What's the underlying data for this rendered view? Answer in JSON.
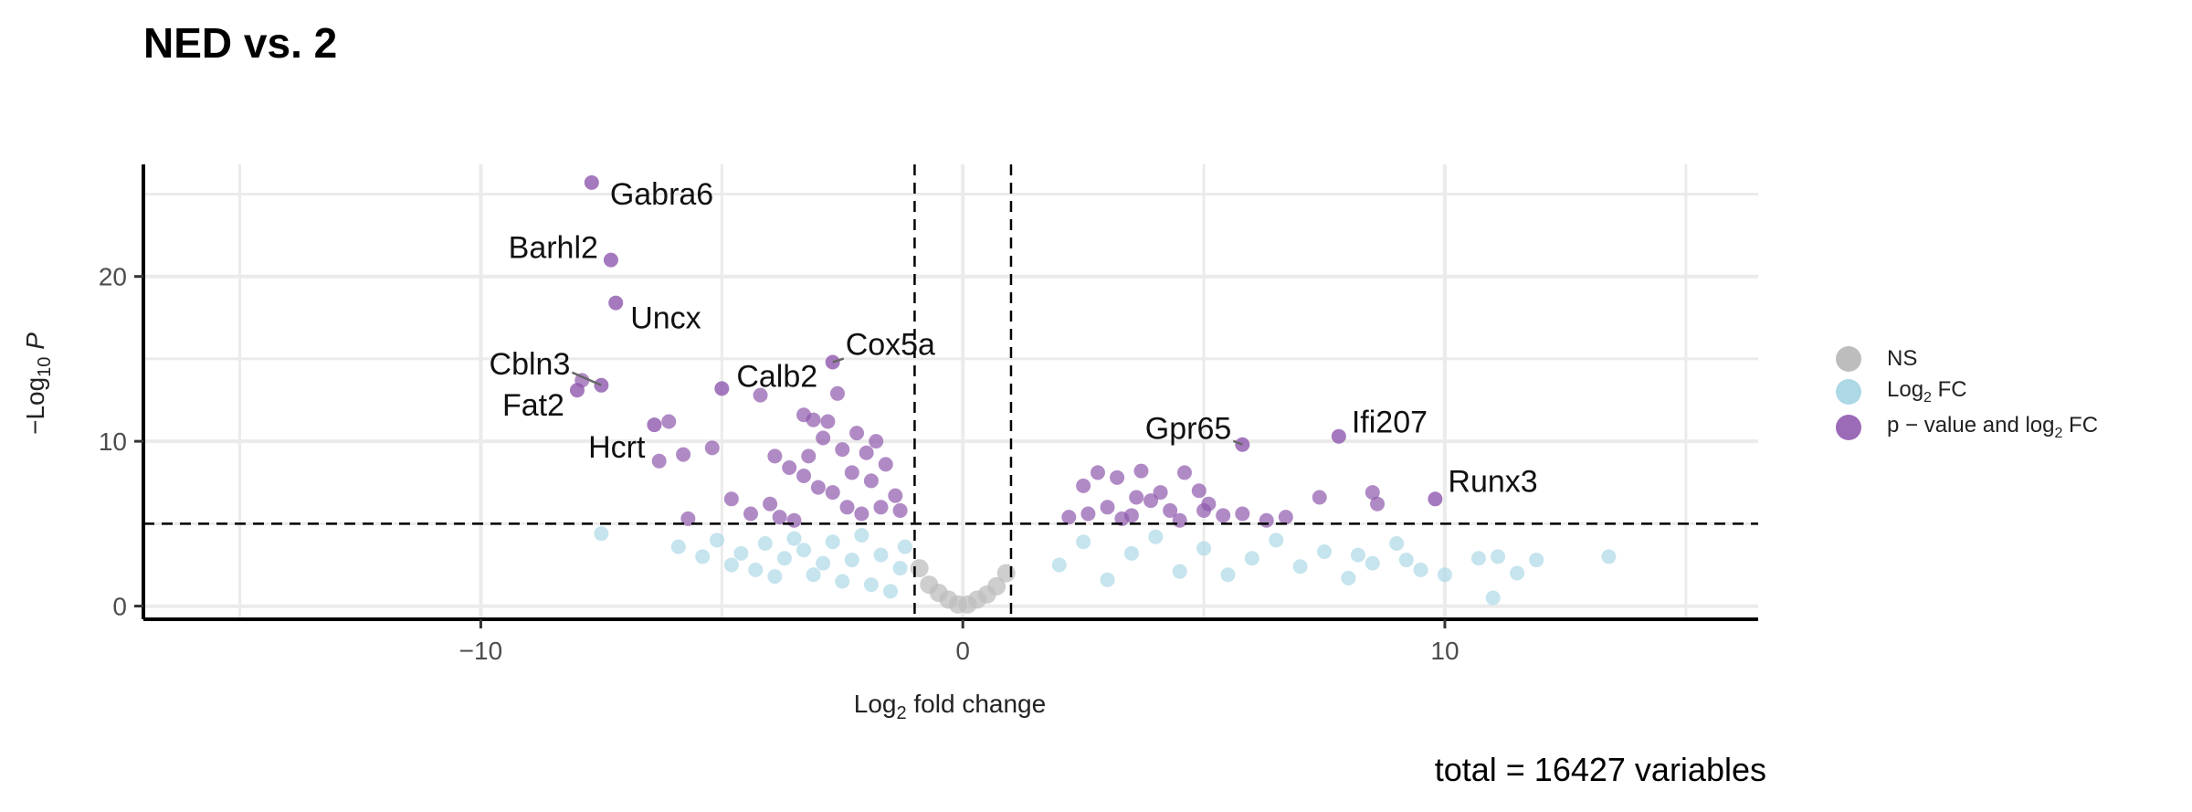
{
  "chart_data": {
    "type": "scatter",
    "title": "NED vs. 2",
    "xlabel_parts": [
      "Log",
      "2",
      " fold change"
    ],
    "ylabel_parts": [
      "−Log",
      "10",
      " P"
    ],
    "xlim": [
      -17,
      16.5
    ],
    "ylim": [
      -0.8,
      26.8
    ],
    "x_ticks": [
      {
        "value": -10,
        "label": "−10"
      },
      {
        "value": 0,
        "label": "0"
      },
      {
        "value": 10,
        "label": "10"
      }
    ],
    "y_ticks": [
      {
        "value": 0,
        "label": "0"
      },
      {
        "value": 10,
        "label": "10"
      },
      {
        "value": 20,
        "label": "20"
      }
    ],
    "cutoffs": {
      "log2fc": [
        -1,
        1
      ],
      "neg_log10_p": 5
    },
    "grid": true,
    "caption": "total = 16427 variables",
    "legend": {
      "position": "right",
      "items": [
        {
          "label_parts": [
            "NS"
          ],
          "color": "#bdbdbd"
        },
        {
          "label_parts": [
            "Log",
            "2",
            " FC"
          ],
          "color": "#add8e6"
        },
        {
          "label_parts": [
            "p − value and log",
            "2",
            " FC"
          ],
          "color": "#9b6bb7"
        }
      ]
    },
    "series_colors": {
      "ns": "#bdbdbd",
      "fc": "#add8e6",
      "both": "#8e58ac"
    },
    "labeled_genes": [
      {
        "name": "Gabra6",
        "x": -7.7,
        "y": 25.7
      },
      {
        "name": "Barhl2",
        "x": -7.3,
        "y": 21.0
      },
      {
        "name": "Uncx",
        "x": -7.2,
        "y": 18.4
      },
      {
        "name": "Cbln3",
        "x": -7.5,
        "y": 13.4
      },
      {
        "name": "Calb2",
        "x": -5.0,
        "y": 13.2
      },
      {
        "name": "Fat2",
        "x": -8.0,
        "y": 13.1
      },
      {
        "name": "Hcrt",
        "x": -6.4,
        "y": 11.0
      },
      {
        "name": "Cox5a",
        "x": -2.7,
        "y": 14.8
      },
      {
        "name": "Gpr65",
        "x": 5.8,
        "y": 9.8
      },
      {
        "name": "Ifi207",
        "x": 7.8,
        "y": 10.3
      },
      {
        "name": "Runx3",
        "x": 9.8,
        "y": 6.5
      }
    ],
    "significant_points": [
      [
        -7.9,
        13.7
      ],
      [
        -6.1,
        11.2
      ],
      [
        -5.8,
        9.2
      ],
      [
        -6.3,
        8.8
      ],
      [
        -5.2,
        9.6
      ],
      [
        -4.8,
        6.5
      ],
      [
        -4.4,
        5.6
      ],
      [
        -5.7,
        5.3
      ],
      [
        -4.2,
        12.8
      ],
      [
        -4.0,
        6.2
      ],
      [
        -3.8,
        5.4
      ],
      [
        -3.6,
        8.4
      ],
      [
        -3.5,
        5.2
      ],
      [
        -3.3,
        11.6
      ],
      [
        -3.1,
        11.3
      ],
      [
        -3.2,
        9.1
      ],
      [
        -3.0,
        7.2
      ],
      [
        -2.9,
        10.2
      ],
      [
        -2.8,
        11.2
      ],
      [
        -2.6,
        12.9
      ],
      [
        -2.5,
        9.5
      ],
      [
        -2.3,
        8.1
      ],
      [
        -2.2,
        10.5
      ],
      [
        -2.0,
        9.3
      ],
      [
        -1.9,
        7.6
      ],
      [
        -1.8,
        10.0
      ],
      [
        -1.7,
        6.0
      ],
      [
        -1.6,
        8.6
      ],
      [
        -1.4,
        6.7
      ],
      [
        -1.3,
        5.8
      ],
      [
        -3.9,
        9.1
      ],
      [
        -3.3,
        7.9
      ],
      [
        -2.7,
        6.9
      ],
      [
        -2.4,
        6.0
      ],
      [
        -2.1,
        5.6
      ],
      [
        2.2,
        5.4
      ],
      [
        2.5,
        7.3
      ],
      [
        2.8,
        8.1
      ],
      [
        3.0,
        6.0
      ],
      [
        3.2,
        7.8
      ],
      [
        3.5,
        5.5
      ],
      [
        3.7,
        8.2
      ],
      [
        3.9,
        6.4
      ],
      [
        4.3,
        5.8
      ],
      [
        4.6,
        8.1
      ],
      [
        4.9,
        7.0
      ],
      [
        5.1,
        6.2
      ],
      [
        5.4,
        5.5
      ],
      [
        5.8,
        5.6
      ],
      [
        6.3,
        5.2
      ],
      [
        6.7,
        5.4
      ],
      [
        7.4,
        6.6
      ],
      [
        8.5,
        6.9
      ],
      [
        8.6,
        6.2
      ],
      [
        4.5,
        5.2
      ],
      [
        3.3,
        5.3
      ],
      [
        2.6,
        5.6
      ],
      [
        5.0,
        5.8
      ],
      [
        4.1,
        6.9
      ],
      [
        3.6,
        6.6
      ]
    ],
    "fc_points": [
      [
        -7.5,
        4.4
      ],
      [
        -5.9,
        3.6
      ],
      [
        -5.4,
        3.0
      ],
      [
        -5.1,
        4.0
      ],
      [
        -4.8,
        2.5
      ],
      [
        -4.6,
        3.2
      ],
      [
        -4.3,
        2.2
      ],
      [
        -4.1,
        3.8
      ],
      [
        -3.9,
        1.8
      ],
      [
        -3.7,
        2.9
      ],
      [
        -3.5,
        4.1
      ],
      [
        -3.3,
        3.4
      ],
      [
        -3.1,
        1.9
      ],
      [
        -2.9,
        2.6
      ],
      [
        -2.7,
        3.9
      ],
      [
        -2.5,
        1.5
      ],
      [
        -2.3,
        2.8
      ],
      [
        -2.1,
        4.3
      ],
      [
        -1.9,
        1.3
      ],
      [
        -1.7,
        3.1
      ],
      [
        -1.5,
        0.9
      ],
      [
        -1.3,
        2.3
      ],
      [
        -1.2,
        3.6
      ],
      [
        2.0,
        2.5
      ],
      [
        2.5,
        3.9
      ],
      [
        3.0,
        1.6
      ],
      [
        3.5,
        3.2
      ],
      [
        4.0,
        4.2
      ],
      [
        4.5,
        2.1
      ],
      [
        5.0,
        3.5
      ],
      [
        5.5,
        1.9
      ],
      [
        6.0,
        2.9
      ],
      [
        6.5,
        4.0
      ],
      [
        7.0,
        2.4
      ],
      [
        7.5,
        3.3
      ],
      [
        8.0,
        1.7
      ],
      [
        8.5,
        2.6
      ],
      [
        9.0,
        3.8
      ],
      [
        9.5,
        2.2
      ],
      [
        10.0,
        1.9
      ],
      [
        10.7,
        2.9
      ],
      [
        11.1,
        3.0
      ],
      [
        11.5,
        2.0
      ],
      [
        11.9,
        2.8
      ],
      [
        13.4,
        3.0
      ],
      [
        11.0,
        0.5
      ],
      [
        8.2,
        3.1
      ],
      [
        9.2,
        2.8
      ]
    ],
    "ns_points": [
      [
        -0.9,
        2.3
      ],
      [
        -0.7,
        1.3
      ],
      [
        -0.5,
        0.8
      ],
      [
        -0.3,
        0.4
      ],
      [
        -0.1,
        0.1
      ],
      [
        0.1,
        0.1
      ],
      [
        0.3,
        0.4
      ],
      [
        0.5,
        0.7
      ],
      [
        0.7,
        1.2
      ],
      [
        0.9,
        2.0
      ]
    ]
  }
}
